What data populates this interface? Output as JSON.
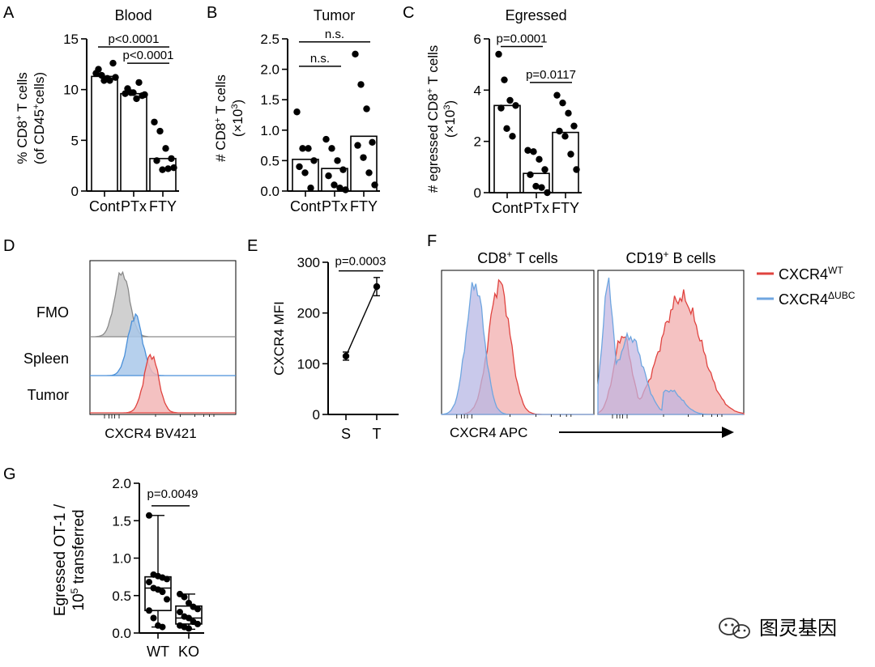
{
  "chart_data": [
    {
      "panel": "A",
      "type": "bar",
      "title": "Blood",
      "ylabel": [
        "% CD8",
        "+",
        " T cells",
        "(of CD45",
        "+",
        "cells)"
      ],
      "categories": [
        "Cont",
        "PTx",
        "FTY"
      ],
      "values": [
        11.3,
        9.6,
        3.2
      ],
      "points": [
        [
          11.6,
          11.4,
          11.1,
          12.6,
          12.0,
          10.9,
          10.9,
          11.2
        ],
        [
          9.6,
          9.7,
          9.1,
          9.4,
          10.1,
          9.7,
          10.7,
          9.5
        ],
        [
          6.8,
          5.9,
          4.2,
          3.2,
          3.0,
          2.1,
          2.2,
          2.3
        ]
      ],
      "ylim": [
        0,
        15
      ],
      "yticks": [
        "0",
        "5",
        "10",
        "15"
      ],
      "comparisons": [
        {
          "label": "p<0.0001",
          "from": 0,
          "to": 2,
          "y": 14.2
        },
        {
          "label": "p<0.0001",
          "from": 1,
          "to": 2,
          "y": 12.6
        }
      ]
    },
    {
      "panel": "B",
      "type": "bar",
      "title": "Tumor",
      "ylabel": [
        "# CD8",
        "+",
        " T cells",
        "(×10",
        "3",
        ")"
      ],
      "categories": [
        "Cont",
        "PTx",
        "FTY"
      ],
      "values": [
        0.52,
        0.37,
        0.9
      ],
      "points": [
        [
          1.3,
          0.7,
          0.7,
          0.5,
          0.4,
          0.3,
          0.05
        ],
        [
          0.85,
          0.7,
          0.5,
          0.35,
          0.25,
          0.1,
          0.05,
          0.02
        ],
        [
          2.25,
          1.75,
          1.35,
          0.8,
          0.75,
          0.55,
          0.3,
          0.1
        ]
      ],
      "ylim": [
        0,
        2.5
      ],
      "yticks": [
        "0.0",
        "0.5",
        "1.0",
        "1.5",
        "2.0",
        "2.5"
      ],
      "comparisons": [
        {
          "label": "n.s.",
          "from": 0,
          "to": 2,
          "y": 2.45
        },
        {
          "label": "n.s.",
          "from": 0,
          "to": 1,
          "y": 2.05
        }
      ]
    },
    {
      "panel": "C",
      "type": "bar",
      "title": "Egressed",
      "ylabel": [
        "# egressed CD8",
        "+",
        " T cells",
        "(×10",
        "3",
        ")"
      ],
      "categories": [
        "Cont",
        "PTx",
        "FTY"
      ],
      "values": [
        3.4,
        0.75,
        2.35
      ],
      "points": [
        [
          5.4,
          4.4,
          3.6,
          3.4,
          3.3,
          2.5,
          2.2
        ],
        [
          1.65,
          1.6,
          1.3,
          0.9,
          0.7,
          0.25,
          0.2,
          0.0
        ],
        [
          3.8,
          3.5,
          3.1,
          2.6,
          2.4,
          2.2,
          1.5,
          0.9
        ]
      ],
      "ylim": [
        0,
        6
      ],
      "yticks": [
        "0",
        "2",
        "4",
        "6"
      ],
      "comparisons": [
        {
          "label": "p=0.0001",
          "from": 0,
          "to": 1,
          "y": 5.7
        },
        {
          "label": "p=0.0117",
          "from": 1,
          "to": 2,
          "y": 4.3
        }
      ]
    },
    {
      "panel": "D",
      "type": "histogram",
      "series": [
        {
          "name": "FMO",
          "color": "#c8c8c8",
          "stroke": "#8a8a8a",
          "peak": 0.22
        },
        {
          "name": "Spleen",
          "color": "#a9c8ea",
          "stroke": "#4a90d9",
          "peak": 0.31
        },
        {
          "name": "Tumor",
          "color": "#f2b6b6",
          "stroke": "#e0433f",
          "peak": 0.42
        }
      ],
      "xlabel": "CXCR4 BV421"
    },
    {
      "panel": "E",
      "type": "line",
      "ylabel": "CXCR4 MFI",
      "categories": [
        "S",
        "T"
      ],
      "values": [
        115,
        252
      ],
      "errors": [
        8,
        18
      ],
      "ylim": [
        0,
        300
      ],
      "yticks": [
        "0",
        "100",
        "200",
        "300"
      ],
      "comparisons": [
        {
          "label": "p=0.0003",
          "from": 0,
          "to": 1,
          "y": 283
        }
      ]
    },
    {
      "panel": "F",
      "type": "histogram",
      "subpanels": [
        "CD8",
        "CD19"
      ],
      "subpanel_titles": [
        [
          "CD8",
          "+",
          " T cells"
        ],
        [
          "CD19",
          "+",
          " B cells"
        ]
      ],
      "legend": [
        {
          "base": "CXCR4",
          "sup": "WT",
          "color": "#e0433f"
        },
        {
          "base": "CXCR4",
          "sup": "ΔUBC",
          "color": "#6fa6e0"
        }
      ],
      "xlabel": "CXCR4 APC",
      "legend_position": "right"
    },
    {
      "panel": "G",
      "type": "box",
      "ylabel": [
        "Egressed OT-1 /",
        "10",
        "5",
        " transferred"
      ],
      "categories": [
        "WT",
        "KO"
      ],
      "boxes": [
        {
          "min": 0.08,
          "q1": 0.3,
          "median": 0.6,
          "q3": 0.75,
          "max": 1.57
        },
        {
          "min": 0.05,
          "q1": 0.12,
          "median": 0.2,
          "q3": 0.36,
          "max": 0.52
        }
      ],
      "points": [
        [
          1.57,
          0.78,
          0.76,
          0.74,
          0.72,
          0.68,
          0.6,
          0.58,
          0.55,
          0.45,
          0.3,
          0.2,
          0.1,
          0.08
        ],
        [
          0.52,
          0.48,
          0.4,
          0.35,
          0.32,
          0.28,
          0.22,
          0.2,
          0.15,
          0.12,
          0.1,
          0.08,
          0.06
        ]
      ],
      "ylim": [
        0,
        2.0
      ],
      "yticks": [
        "0.0",
        "0.5",
        "1.0",
        "1.5",
        "2.0"
      ],
      "comparisons": [
        {
          "label": "p=0.0049",
          "from": 0,
          "to": 1,
          "y": 1.85
        }
      ]
    }
  ],
  "labels": {
    "A": "A",
    "B": "B",
    "C": "C",
    "D": "D",
    "E": "E",
    "F": "F",
    "G": "G"
  },
  "histogram_f": {
    "xlabel": "CXCR4 APC"
  },
  "watermark": {
    "text": "图灵基因"
  }
}
